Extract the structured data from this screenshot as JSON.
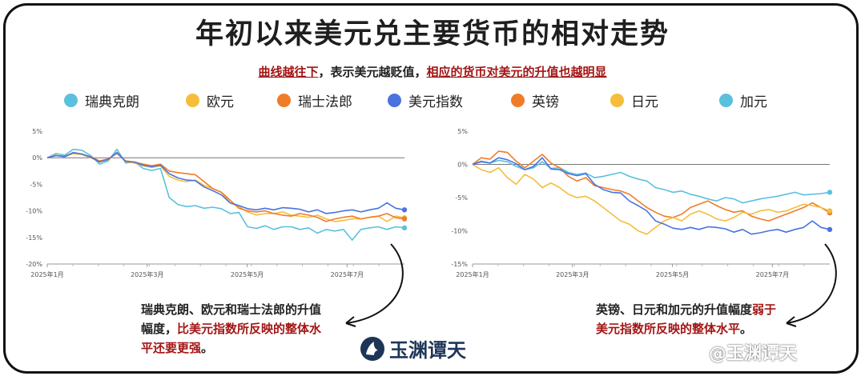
{
  "title": "年初以来美元兑主要货币的相对走势",
  "subtitle": {
    "part1": "曲线越往下",
    "part2": "，表示美元越贬值，",
    "part3": "相应的货币对美元的升值也越明显"
  },
  "legend": [
    {
      "label": "瑞典克朗",
      "color": "#5bc0de"
    },
    {
      "label": "欧元",
      "color": "#f5bd3a"
    },
    {
      "label": "瑞士法郎",
      "color": "#f07c2a"
    },
    {
      "label": "美元指数",
      "color": "#4a73e0"
    },
    {
      "label": "英镑",
      "color": "#f07c2a"
    },
    {
      "label": "日元",
      "color": "#f5bd3a"
    },
    {
      "label": "加元",
      "color": "#5bc0de"
    }
  ],
  "note1": {
    "plain": "瑞典克朗、欧元和瑞士法郎的升值幅度，",
    "red": "比美元指数所反映的整体水平还要更强",
    "end": "。"
  },
  "note2": {
    "plain": "英镑、日元和加元的升值幅度",
    "red": "弱于美元指数所反映的整体水平",
    "end": "。"
  },
  "logo_text": "玉渊谭天",
  "watermark": "@玉渊谭天",
  "chart_data": [
    {
      "type": "line",
      "x_ticks": [
        "2025年1月",
        "2025年3月",
        "2025年5月",
        "2025年7月"
      ],
      "y_ticks": [
        "5%",
        "0%",
        "-5%",
        "-10%",
        "-15%",
        "-20%"
      ],
      "ylim": [
        -20,
        5
      ],
      "series": [
        {
          "name": "瑞典克朗",
          "color": "#5bc0de",
          "values": [
            0,
            0.8,
            0.5,
            1.6,
            1.4,
            0.4,
            -1.2,
            -0.6,
            1.6,
            -1.0,
            -0.8,
            -2.0,
            -2.4,
            -2.0,
            -7.5,
            -8.8,
            -9.2,
            -9.0,
            -9.5,
            -9.3,
            -9.6,
            -10.5,
            -10.3,
            -13.0,
            -13.3,
            -12.8,
            -13.5,
            -13.0,
            -13.0,
            -13.5,
            -13.2,
            -14.2,
            -13.5,
            -13.8,
            -13.5,
            -15.5,
            -13.5,
            -13.2,
            -13.0,
            -13.5,
            -13.0,
            -13.2
          ]
        },
        {
          "name": "欧元",
          "color": "#f5bd3a",
          "values": [
            0,
            0.5,
            0.2,
            0.8,
            0.6,
            0,
            -0.8,
            -0.4,
            1.0,
            -0.8,
            -1.0,
            -1.5,
            -1.8,
            -1.5,
            -3.5,
            -4.2,
            -4.5,
            -4.2,
            -5.2,
            -5.8,
            -6.5,
            -8.5,
            -9.2,
            -10.2,
            -10.8,
            -10.5,
            -10.5,
            -10.2,
            -10.8,
            -11.0,
            -11.2,
            -10.8,
            -11.5,
            -12.0,
            -11.8,
            -11.5,
            -11.5,
            -11.2,
            -11.0,
            -12.0,
            -11.0,
            -11.3
          ]
        },
        {
          "name": "瑞士法郎",
          "color": "#f07c2a",
          "values": [
            0,
            0.4,
            0.3,
            0.9,
            0.7,
            0.2,
            -0.6,
            -0.2,
            0.8,
            -0.6,
            -0.8,
            -1.2,
            -1.5,
            -1.2,
            -2.5,
            -2.8,
            -3.0,
            -3.2,
            -4.5,
            -5.8,
            -6.5,
            -8.0,
            -9.5,
            -10.0,
            -10.2,
            -10.0,
            -10.5,
            -10.8,
            -11.0,
            -10.5,
            -10.8,
            -11.2,
            -12.0,
            -11.5,
            -11.2,
            -11.0,
            -11.5,
            -11.2,
            -11.0,
            -10.5,
            -11.3,
            -11.5
          ]
        },
        {
          "name": "美元指数",
          "color": "#4a73e0",
          "values": [
            0,
            0.4,
            0.2,
            1.0,
            0.7,
            0.1,
            -0.8,
            -0.3,
            1.0,
            -0.7,
            -0.8,
            -1.4,
            -1.7,
            -1.4,
            -3.0,
            -3.8,
            -4.2,
            -4.3,
            -5.5,
            -6.2,
            -7.0,
            -8.5,
            -9.0,
            -9.6,
            -9.8,
            -9.5,
            -9.8,
            -9.4,
            -9.5,
            -9.7,
            -10.2,
            -9.8,
            -10.5,
            -10.3,
            -10.0,
            -9.8,
            -10.2,
            -9.8,
            -9.5,
            -8.5,
            -9.5,
            -9.8
          ]
        }
      ]
    },
    {
      "type": "line",
      "x_ticks": [
        "2025年1月",
        "2025年3月",
        "2025年5月",
        "2025年7月"
      ],
      "y_ticks": [
        "5%",
        "0%",
        "-5%",
        "-10%",
        "-15%"
      ],
      "ylim": [
        -15,
        5
      ],
      "series": [
        {
          "name": "加元",
          "color": "#5bc0de",
          "values": [
            0,
            0.5,
            0.2,
            0.6,
            0.4,
            -0.3,
            -0.8,
            -0.5,
            0.4,
            -0.6,
            -0.5,
            -1.2,
            -1.5,
            -1.3,
            -2.0,
            -1.8,
            -1.5,
            -1.2,
            -1.8,
            -2.2,
            -2.5,
            -3.5,
            -3.8,
            -4.2,
            -4.0,
            -4.5,
            -4.8,
            -5.2,
            -5.5,
            -5.0,
            -5.2,
            -5.8,
            -5.5,
            -5.2,
            -5.0,
            -4.8,
            -4.5,
            -4.2,
            -4.6,
            -4.5,
            -4.4,
            -4.2
          ]
        },
        {
          "name": "英镑",
          "color": "#f07c2a",
          "values": [
            0,
            1.0,
            0.8,
            2.0,
            1.8,
            0.5,
            -0.5,
            0.5,
            1.5,
            0.2,
            -0.5,
            -1.8,
            -2.5,
            -2.0,
            -3.2,
            -3.5,
            -3.8,
            -4.0,
            -4.5,
            -5.5,
            -6.5,
            -7.2,
            -7.8,
            -8.0,
            -7.5,
            -6.5,
            -6.0,
            -5.5,
            -6.2,
            -6.8,
            -7.2,
            -7.0,
            -7.8,
            -8.2,
            -8.5,
            -8.0,
            -7.5,
            -7.0,
            -6.5,
            -5.8,
            -6.5,
            -7.3
          ]
        },
        {
          "name": "日元",
          "color": "#f5bd3a",
          "values": [
            0,
            -0.8,
            -1.2,
            -0.5,
            -2.0,
            -3.0,
            -1.5,
            -2.2,
            -3.5,
            -2.8,
            -3.5,
            -4.5,
            -5.0,
            -4.8,
            -5.5,
            -6.5,
            -7.5,
            -8.5,
            -9.0,
            -10.0,
            -10.5,
            -9.5,
            -8.5,
            -8.0,
            -8.5,
            -7.5,
            -7.0,
            -7.5,
            -8.2,
            -8.5,
            -8.0,
            -7.2,
            -7.5,
            -7.0,
            -6.8,
            -7.2,
            -7.0,
            -6.5,
            -6.0,
            -6.2,
            -6.5,
            -7.0
          ]
        },
        {
          "name": "美元指数",
          "color": "#4a73e0",
          "values": [
            0,
            0.4,
            0.2,
            1.0,
            0.7,
            0.1,
            -0.8,
            -0.3,
            1.0,
            -0.7,
            -0.8,
            -1.4,
            -1.7,
            -1.4,
            -3.0,
            -3.8,
            -4.2,
            -4.3,
            -5.5,
            -6.2,
            -7.0,
            -8.5,
            -9.0,
            -9.6,
            -9.8,
            -9.5,
            -9.8,
            -9.4,
            -9.5,
            -9.7,
            -10.2,
            -9.8,
            -10.5,
            -10.3,
            -10.0,
            -9.8,
            -10.2,
            -9.8,
            -9.5,
            -8.5,
            -9.5,
            -9.8
          ]
        }
      ]
    }
  ]
}
